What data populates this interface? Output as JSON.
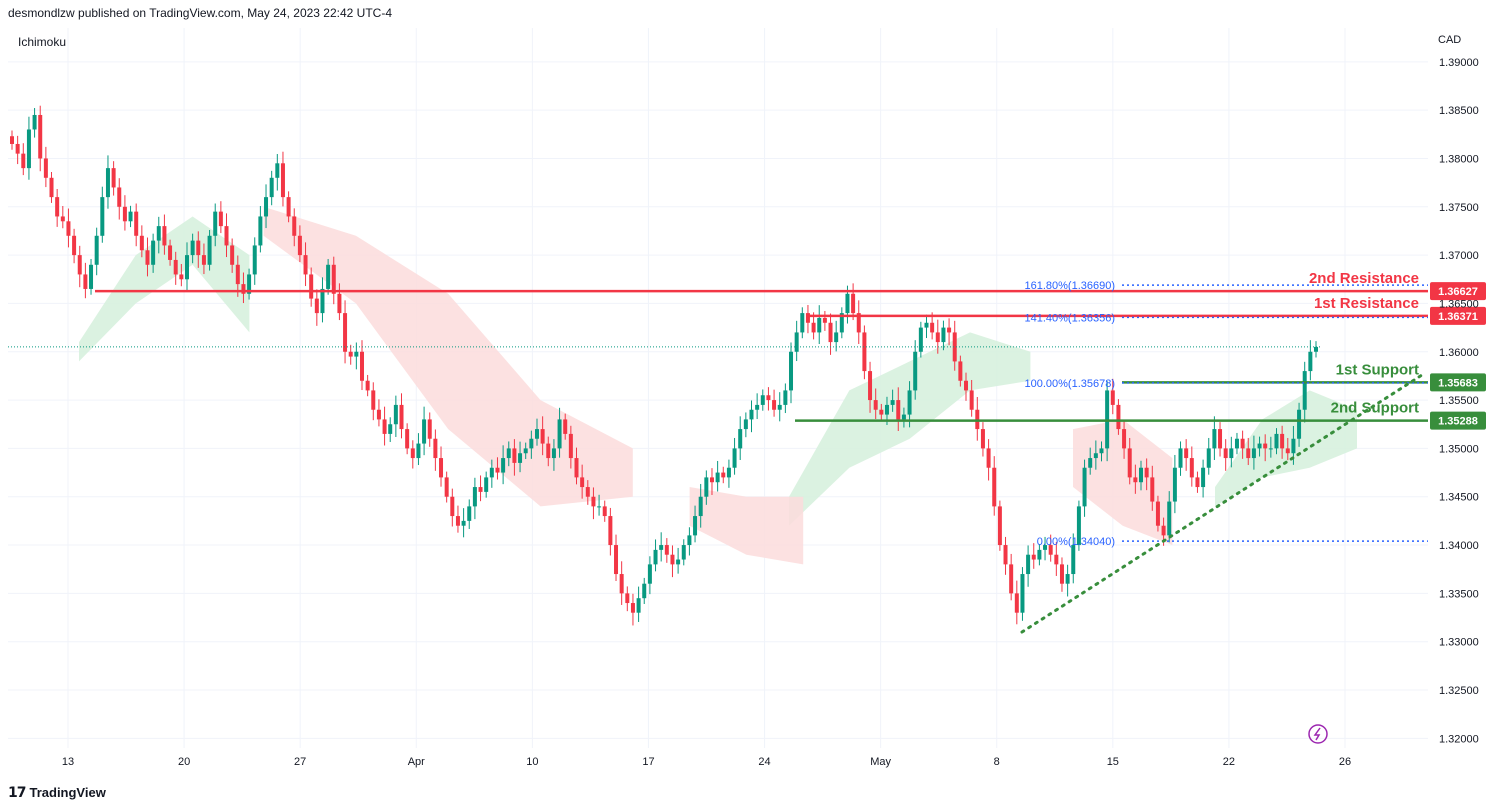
{
  "header": {
    "published": "desmondlzw published on TradingView.com, May 24, 2023 22:42 UTC-4",
    "indicator": "Ichimoku",
    "currency": "CAD",
    "footer_brand": "TradingView"
  },
  "chart_data": {
    "type": "candlestick",
    "y_unit": "CAD",
    "ylim": [
      1.319,
      1.3935
    ],
    "y_ticks": [
      "1.39000",
      "1.38500",
      "1.38000",
      "1.37500",
      "1.37000",
      "1.36500",
      "1.36000",
      "1.35500",
      "1.35000",
      "1.34500",
      "1.34000",
      "1.33500",
      "1.33000",
      "1.32500",
      "1.32000"
    ],
    "x_ticks": [
      "13",
      "20",
      "27",
      "Apr",
      "10",
      "17",
      "24",
      "May",
      "8",
      "15",
      "22",
      "26"
    ],
    "close_series": [
      1.3815,
      1.3805,
      1.379,
      1.383,
      1.3845,
      1.38,
      1.378,
      1.376,
      1.374,
      1.3735,
      1.372,
      1.37,
      1.368,
      1.3665,
      1.369,
      1.372,
      1.376,
      1.379,
      1.377,
      1.375,
      1.3735,
      1.3745,
      1.372,
      1.3705,
      1.369,
      1.3715,
      1.373,
      1.371,
      1.3695,
      1.368,
      1.3675,
      1.37,
      1.3715,
      1.37,
      1.369,
      1.372,
      1.3745,
      1.373,
      1.371,
      1.369,
      1.367,
      1.366,
      1.368,
      1.371,
      1.374,
      1.376,
      1.378,
      1.3795,
      1.376,
      1.374,
      1.372,
      1.37,
      1.368,
      1.3655,
      1.364,
      1.3665,
      1.369,
      1.366,
      1.364,
      1.36,
      1.3595,
      1.36,
      1.357,
      1.356,
      1.354,
      1.353,
      1.3515,
      1.3525,
      1.3545,
      1.352,
      1.35,
      1.349,
      1.3505,
      1.353,
      1.351,
      1.349,
      1.347,
      1.345,
      1.343,
      1.342,
      1.3425,
      1.344,
      1.346,
      1.3455,
      1.347,
      1.348,
      1.3475,
      1.349,
      1.35,
      1.3485,
      1.3495,
      1.35,
      1.351,
      1.352,
      1.3505,
      1.349,
      1.35,
      1.353,
      1.3515,
      1.349,
      1.347,
      1.346,
      1.345,
      1.344,
      1.344,
      1.343,
      1.34,
      1.337,
      1.335,
      1.334,
      1.333,
      1.3345,
      1.336,
      1.338,
      1.3395,
      1.34,
      1.339,
      1.338,
      1.3385,
      1.34,
      1.341,
      1.343,
      1.345,
      1.347,
      1.3465,
      1.3475,
      1.347,
      1.348,
      1.35,
      1.352,
      1.353,
      1.354,
      1.3545,
      1.3555,
      1.355,
      1.354,
      1.3545,
      1.356,
      1.36,
      1.362,
      1.364,
      1.363,
      1.362,
      1.3635,
      1.363,
      1.361,
      1.362,
      1.364,
      1.366,
      1.364,
      1.362,
      1.358,
      1.355,
      1.354,
      1.3535,
      1.3545,
      1.355,
      1.353,
      1.3535,
      1.356,
      1.36,
      1.3625,
      1.363,
      1.362,
      1.361,
      1.3625,
      1.362,
      1.359,
      1.357,
      1.356,
      1.354,
      1.352,
      1.35,
      1.348,
      1.344,
      1.34,
      1.338,
      1.335,
      1.333,
      1.337,
      1.339,
      1.3385,
      1.3395,
      1.34,
      1.339,
      1.338,
      1.336,
      1.337,
      1.34,
      1.344,
      1.348,
      1.349,
      1.3495,
      1.35,
      1.356,
      1.3545,
      1.352,
      1.35,
      1.347,
      1.3465,
      1.348,
      1.347,
      1.3445,
      1.342,
      1.341,
      1.3445,
      1.348,
      1.35,
      1.349,
      1.347,
      1.346,
      1.348,
      1.35,
      1.352,
      1.35,
      1.349,
      1.35,
      1.351,
      1.35,
      1.349,
      1.35,
      1.3505,
      1.35,
      1.35,
      1.3515,
      1.35,
      1.3495,
      1.351,
      1.354,
      1.358,
      1.36,
      1.3605
    ],
    "ichimoku_cloud": {
      "bullish": [
        {
          "x": [
            0.05,
            0.17
          ],
          "bounds": [
            [
              1.361,
              1.359
            ],
            [
              1.37,
              1.365
            ],
            [
              1.374,
              1.369
            ],
            [
              1.37,
              1.362
            ]
          ]
        },
        {
          "x": [
            0.55,
            0.72
          ],
          "bounds": [
            [
              1.345,
              1.342
            ],
            [
              1.356,
              1.348
            ],
            [
              1.359,
              1.351
            ],
            [
              1.362,
              1.356
            ],
            [
              1.36,
              1.357
            ]
          ]
        },
        {
          "x": [
            0.85,
            0.95
          ],
          "bounds": [
            [
              1.346,
              1.344
            ],
            [
              1.353,
              1.347
            ],
            [
              1.356,
              1.348
            ],
            [
              1.354,
              1.35
            ]
          ]
        }
      ],
      "bearish": [
        {
          "x": [
            0.18,
            0.44
          ],
          "bounds": [
            [
              1.375,
              1.372
            ],
            [
              1.372,
              1.365
            ],
            [
              1.366,
              1.352
            ],
            [
              1.355,
              1.344
            ],
            [
              1.35,
              1.345
            ]
          ]
        },
        {
          "x": [
            0.48,
            0.56
          ],
          "bounds": [
            [
              1.346,
              1.342
            ],
            [
              1.345,
              1.339
            ],
            [
              1.345,
              1.338
            ]
          ]
        },
        {
          "x": [
            0.75,
            0.82
          ],
          "bounds": [
            [
              1.352,
              1.346
            ],
            [
              1.353,
              1.342
            ],
            [
              1.349,
              1.34
            ]
          ]
        }
      ]
    },
    "levels": [
      {
        "name": "2nd Resistance",
        "value": 1.36627,
        "tag": "1.36627",
        "color": "#f23645",
        "kind": "resistance"
      },
      {
        "name": "1st Resistance",
        "value": 1.36371,
        "tag": "1.36371",
        "color": "#f23645",
        "kind": "resistance"
      },
      {
        "name": "1st Support",
        "value": 1.35683,
        "tag": "1.35683",
        "color": "#388e3c",
        "kind": "support"
      },
      {
        "name": "2nd Support",
        "value": 1.35288,
        "tag": "1.35288",
        "color": "#388e3c",
        "kind": "support"
      }
    ],
    "fibonacci": [
      {
        "label": "161.80%(1.36690)",
        "value": 1.3669
      },
      {
        "label": "141.40%(1.36356)",
        "value": 1.36356
      },
      {
        "label": "100.00%(1.35678)",
        "value": 1.35678
      },
      {
        "label": "0.00%(1.34040)",
        "value": 1.3404
      }
    ],
    "trendline": {
      "from": [
        1.331
      ],
      "to": [
        1.3578
      ]
    },
    "last_price": 1.3605,
    "colors": {
      "up": "#089981",
      "down": "#f23645",
      "cloud_bull": "#d5f0dc",
      "cloud_bear": "#fcdcdc",
      "fib": "#2962ff",
      "grid": "#f0f3fa"
    }
  }
}
